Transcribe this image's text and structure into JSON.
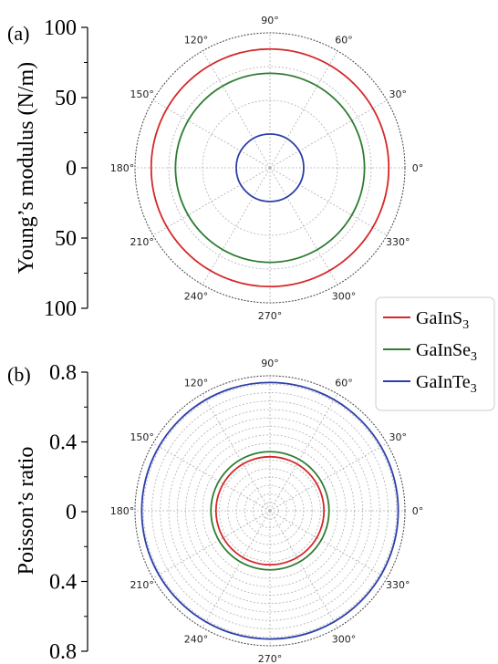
{
  "chart_data": [
    {
      "panel_label": "(a)",
      "type": "polar",
      "ylabel": "Young’s modulus (N/m)",
      "yticks": [
        "100",
        "50",
        "0",
        "50",
        "100"
      ],
      "angle_ticks": [
        "0°",
        "30°",
        "60°",
        "90°",
        "120°",
        "150°",
        "180°",
        "210°",
        "240°",
        "270°",
        "300°",
        "330°"
      ],
      "rmax": 100,
      "radial_grid_step": 25,
      "grid": true,
      "series": [
        {
          "name": "GaInS3",
          "color": "#d62728",
          "value": 88
        },
        {
          "name": "GaInSe3",
          "color": "#2e7d32",
          "value": 70
        },
        {
          "name": "GaInTe3",
          "color": "#2b3fa8",
          "value": 25
        }
      ]
    },
    {
      "panel_label": "(b)",
      "type": "polar",
      "ylabel": "Poisson’s ratio",
      "yticks": [
        "0.8",
        "0.4",
        "0",
        "0.4",
        "0.8"
      ],
      "angle_ticks": [
        "0°",
        "30°",
        "60°",
        "90°",
        "120°",
        "150°",
        "180°",
        "210°",
        "240°",
        "270°",
        "300°",
        "330°"
      ],
      "rmax": 0.8,
      "radial_grid_step": 0.05,
      "grid": true,
      "series": [
        {
          "name": "GaInS3",
          "color": "#d62728",
          "value": 0.32
        },
        {
          "name": "GaInSe3",
          "color": "#2e7d32",
          "value": 0.35
        },
        {
          "name": "GaInTe3",
          "color": "#2b3fa8",
          "value": 0.76
        }
      ]
    }
  ],
  "legend": {
    "placement": "between panels, right",
    "items": [
      {
        "base": "GaInS",
        "sub": "3",
        "color": "#d62728"
      },
      {
        "base": "GaInSe",
        "sub": "3",
        "color": "#2e7d32"
      },
      {
        "base": "GaInTe",
        "sub": "3",
        "color": "#2b3fa8"
      }
    ]
  }
}
